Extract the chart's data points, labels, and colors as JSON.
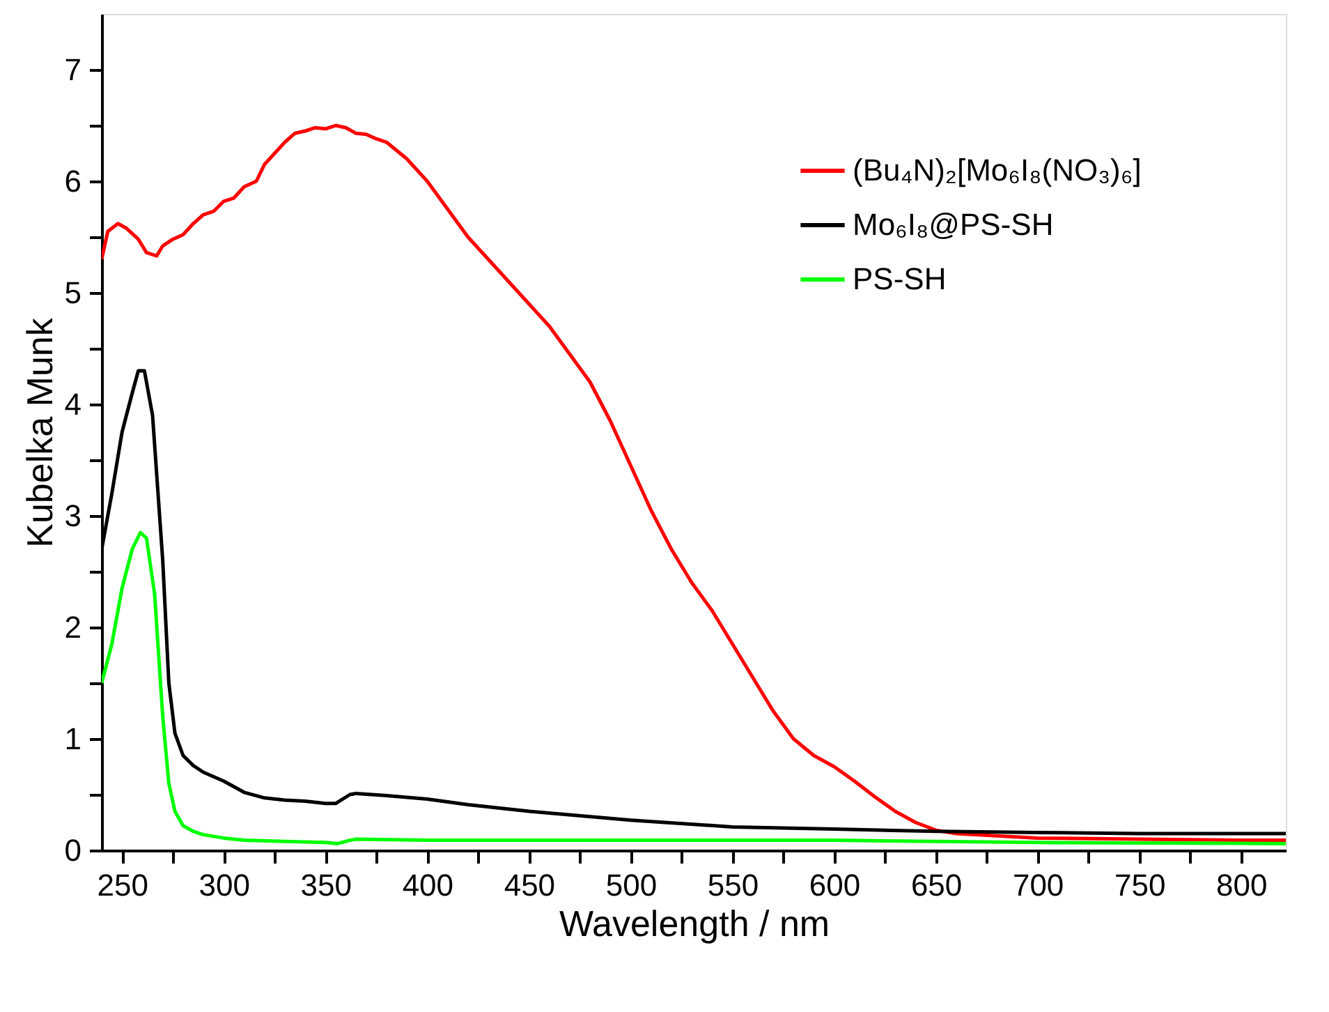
{
  "chart_data": {
    "type": "line",
    "xlabel": "Wavelength / nm",
    "ylabel": "Kubelka Munk",
    "xlim": [
      240,
      822
    ],
    "ylim": [
      0,
      7.5
    ],
    "xticks": [
      250,
      {
        "value": 275,
        "label": null
      },
      300,
      {
        "value": 325,
        "label": null
      },
      350,
      {
        "value": 375,
        "label": null
      },
      400,
      {
        "value": 425,
        "label": null
      },
      450,
      {
        "value": 475,
        "label": null
      },
      500,
      {
        "value": 525,
        "label": null
      },
      550,
      {
        "value": 575,
        "label": null
      },
      600,
      {
        "value": 625,
        "label": null
      },
      650,
      {
        "value": 675,
        "label": null
      },
      700,
      {
        "value": 725,
        "label": null
      },
      750,
      {
        "value": 775,
        "label": null
      },
      800
    ],
    "yticks": [
      0,
      {
        "value": 0.5,
        "label": null
      },
      1,
      {
        "value": 1.5,
        "label": null
      },
      2,
      {
        "value": 2.5,
        "label": null
      },
      3,
      {
        "value": 3.5,
        "label": null
      },
      4,
      {
        "value": 4.5,
        "label": null
      },
      5,
      {
        "value": 5.5,
        "label": null
      },
      6,
      {
        "value": 6.5,
        "label": null
      },
      7
    ],
    "grid": false,
    "legend": "top right",
    "marker": "none",
    "line_style": "solid",
    "series": [
      {
        "name": "(Bu₄N)₂[Mo₆I₈(NO₃)₆]",
        "color": "#ff0000",
        "x": [
          240,
          243,
          248,
          252,
          258,
          262,
          267,
          270,
          275,
          280,
          285,
          290,
          295,
          300,
          305,
          310,
          316,
          320,
          325,
          330,
          335,
          340,
          345,
          350,
          355,
          360,
          365,
          370,
          375,
          380,
          390,
          400,
          410,
          420,
          430,
          440,
          450,
          460,
          470,
          480,
          490,
          500,
          510,
          520,
          530,
          540,
          550,
          560,
          570,
          580,
          590,
          600,
          610,
          620,
          630,
          640,
          650,
          660,
          680,
          700,
          750,
          800,
          822
        ],
        "values": [
          5.3,
          5.55,
          5.62,
          5.58,
          5.48,
          5.36,
          5.33,
          5.42,
          5.48,
          5.52,
          5.62,
          5.7,
          5.73,
          5.82,
          5.85,
          5.95,
          6.0,
          6.15,
          6.25,
          6.35,
          6.43,
          6.45,
          6.48,
          6.47,
          6.5,
          6.48,
          6.43,
          6.42,
          6.38,
          6.35,
          6.2,
          6.0,
          5.75,
          5.5,
          5.3,
          5.1,
          4.9,
          4.7,
          4.45,
          4.2,
          3.85,
          3.45,
          3.05,
          2.7,
          2.4,
          2.15,
          1.85,
          1.55,
          1.25,
          1.0,
          0.85,
          0.75,
          0.62,
          0.48,
          0.35,
          0.25,
          0.18,
          0.15,
          0.13,
          0.11,
          0.1,
          0.09,
          0.09
        ]
      },
      {
        "name": "Mo₆I₈@PS-SH",
        "color": "#000000",
        "x": [
          240,
          245,
          250,
          255,
          258,
          261,
          265,
          270,
          273,
          276,
          280,
          285,
          290,
          300,
          310,
          320,
          330,
          340,
          350,
          355,
          362,
          365,
          380,
          400,
          420,
          450,
          500,
          550,
          600,
          650,
          700,
          750,
          822
        ],
        "values": [
          2.7,
          3.2,
          3.75,
          4.1,
          4.3,
          4.3,
          3.9,
          2.6,
          1.5,
          1.05,
          0.85,
          0.76,
          0.7,
          0.62,
          0.52,
          0.47,
          0.45,
          0.44,
          0.42,
          0.42,
          0.5,
          0.51,
          0.49,
          0.46,
          0.41,
          0.35,
          0.27,
          0.21,
          0.19,
          0.17,
          0.16,
          0.15,
          0.15
        ]
      },
      {
        "name": "PS-SH",
        "color": "#00ff00",
        "x": [
          240,
          245,
          250,
          255,
          259,
          262,
          266,
          270,
          273,
          276,
          280,
          285,
          290,
          300,
          310,
          330,
          350,
          356,
          362,
          365,
          400,
          500,
          600,
          700,
          822
        ],
        "values": [
          1.5,
          1.85,
          2.35,
          2.7,
          2.85,
          2.8,
          2.3,
          1.2,
          0.6,
          0.35,
          0.22,
          0.17,
          0.14,
          0.11,
          0.09,
          0.08,
          0.07,
          0.06,
          0.09,
          0.1,
          0.09,
          0.09,
          0.09,
          0.07,
          0.06
        ]
      }
    ]
  }
}
